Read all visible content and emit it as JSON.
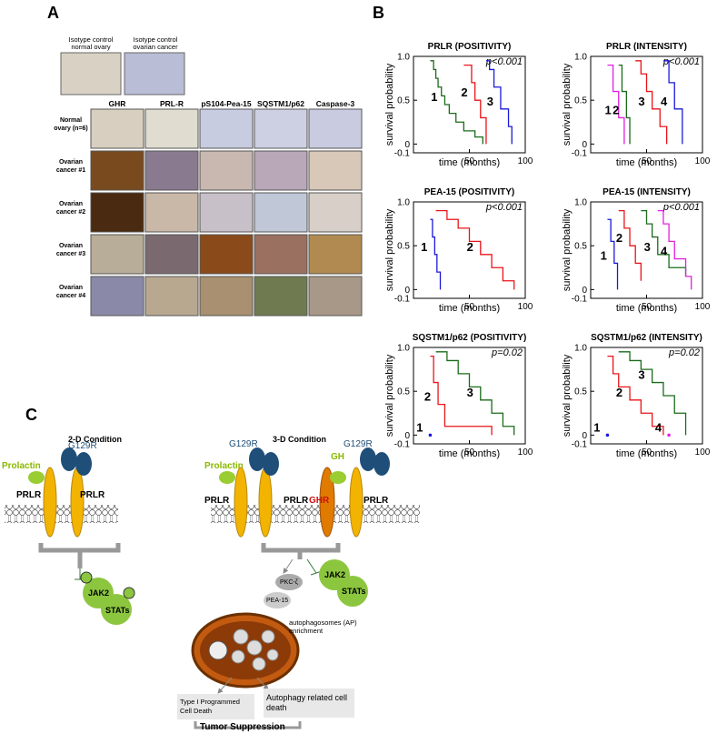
{
  "panel_a": {
    "label": "A",
    "isotype": [
      "Isotype control normal ovary",
      "Isotype  control ovarian cancer"
    ],
    "columns": [
      "GHR",
      "PRL-R",
      "pS104-Pea-15",
      "SQSTM1/p62",
      "Caspase-3"
    ],
    "rows": [
      "Normal ovary (n=6)",
      "Ovarian cancer #1",
      "Ovarian cancer #2",
      "Ovarian cancer #3",
      "Ovarian cancer #4"
    ]
  },
  "panel_b": {
    "label": "B"
  },
  "chart_data": [
    {
      "type": "line",
      "title": "PRLR (POSITIVITY)",
      "annotation": "p<0.001",
      "x_label": "time (months)",
      "y_label": "survival probability",
      "xlim": [
        0,
        100
      ],
      "ylim": [
        -0.1,
        1
      ],
      "xticks": [
        50,
        100
      ],
      "yticks": [
        -0.1,
        0,
        0.5,
        {
          "value": 1,
          "label": "1.0"
        }
      ],
      "series": [
        {
          "name": "1",
          "color": "#1a6b1a",
          "x": [
            15,
            18,
            20,
            22,
            25,
            28,
            32,
            38,
            45,
            55,
            62
          ],
          "values": [
            0.95,
            0.85,
            0.75,
            0.65,
            0.55,
            0.45,
            0.35,
            0.25,
            0.15,
            0.08,
            0
          ]
        },
        {
          "name": "2",
          "color": "#e8141a",
          "x": [
            45,
            52,
            55,
            60,
            65
          ],
          "values": [
            0.9,
            0.7,
            0.5,
            0.3,
            0
          ]
        },
        {
          "name": "3",
          "color": "#1a1adb",
          "x": [
            65,
            68,
            72,
            78,
            85,
            88
          ],
          "values": [
            0.95,
            0.85,
            0.65,
            0.4,
            0.2,
            0
          ]
        }
      ]
    },
    {
      "type": "line",
      "title": "PRLR (INTENSITY)",
      "annotation": "p<0.001",
      "x_label": "time (months)",
      "y_label": "survival probability",
      "xlim": [
        0,
        100
      ],
      "ylim": [
        -0.1,
        1
      ],
      "xticks": [
        50,
        100
      ],
      "yticks": [
        -0.1,
        0,
        0.5,
        {
          "value": 1,
          "label": "1.0"
        }
      ],
      "series": [
        {
          "name": "1",
          "color": "#e020e0",
          "x": [
            15,
            20,
            25,
            30
          ],
          "values": [
            0.9,
            0.6,
            0.3,
            0
          ]
        },
        {
          "name": "2",
          "color": "#1a6b1a",
          "x": [
            25,
            28,
            32,
            35
          ],
          "values": [
            0.9,
            0.6,
            0.3,
            0
          ]
        },
        {
          "name": "3",
          "color": "#e8141a",
          "x": [
            40,
            45,
            50,
            55,
            62,
            68
          ],
          "values": [
            0.95,
            0.8,
            0.6,
            0.4,
            0.2,
            0
          ]
        },
        {
          "name": "4",
          "color": "#1a1adb",
          "x": [
            65,
            70,
            75,
            82
          ],
          "values": [
            0.95,
            0.7,
            0.4,
            0
          ]
        }
      ]
    },
    {
      "type": "line",
      "title": "PEA-15 (POSITIVITY)",
      "annotation": "p<0.001",
      "x_label": "time (months)",
      "y_label": "survival probability",
      "xlim": [
        0,
        100
      ],
      "ylim": [
        -0.1,
        1
      ],
      "xticks": [
        50,
        100
      ],
      "yticks": [
        -0.1,
        0,
        0.5,
        {
          "value": 1,
          "label": "1.0"
        }
      ],
      "series": [
        {
          "name": "1",
          "color": "#1a1adb",
          "x": [
            15,
            17,
            19,
            21,
            24
          ],
          "values": [
            0.8,
            0.6,
            0.4,
            0.2,
            0
          ]
        },
        {
          "name": "2",
          "color": "#e8141a",
          "x": [
            20,
            30,
            40,
            50,
            60,
            70,
            80,
            90
          ],
          "values": [
            0.9,
            0.8,
            0.7,
            0.55,
            0.4,
            0.25,
            0.1,
            0
          ]
        }
      ]
    },
    {
      "type": "line",
      "title": "PEA-15 (INTENSITY)",
      "annotation": "p<0.001",
      "x_label": "time (months)",
      "y_label": "survival probability",
      "xlim": [
        0,
        100
      ],
      "ylim": [
        -0.1,
        1
      ],
      "xticks": [
        50,
        100
      ],
      "yticks": [
        -0.1,
        0,
        0.5,
        {
          "value": 1,
          "label": "1.0"
        }
      ],
      "series": [
        {
          "name": "1",
          "color": "#1a1adb",
          "x": [
            15,
            18,
            21,
            24
          ],
          "values": [
            0.8,
            0.55,
            0.3,
            0
          ]
        },
        {
          "name": "2",
          "color": "#e8141a",
          "x": [
            25,
            30,
            35,
            40,
            45
          ],
          "values": [
            0.9,
            0.7,
            0.5,
            0.3,
            0.1
          ]
        },
        {
          "name": "3",
          "color": "#1a6b1a",
          "x": [
            45,
            50,
            55,
            60,
            70,
            85
          ],
          "values": [
            0.9,
            0.75,
            0.6,
            0.4,
            0.25,
            0.15
          ]
        },
        {
          "name": "4",
          "color": "#e020e0",
          "x": [
            60,
            65,
            70,
            75,
            85,
            90
          ],
          "values": [
            0.9,
            0.75,
            0.55,
            0.35,
            0.15,
            0
          ]
        }
      ]
    },
    {
      "type": "line",
      "title": "SQSTM1/p62 (POSITIVITY)",
      "annotation": "p=0.02",
      "x_label": "time (months)",
      "y_label": "survival probability",
      "xlim": [
        0,
        100
      ],
      "ylim": [
        -0.1,
        1
      ],
      "xticks": [
        50,
        100
      ],
      "yticks": [
        -0.1,
        0,
        0.5,
        {
          "value": 1,
          "label": "1.0"
        }
      ],
      "series": [
        {
          "name": "1",
          "color": "#1a1adb",
          "x": [
            15
          ],
          "values": [
            0
          ]
        },
        {
          "name": "2",
          "color": "#e8141a",
          "x": [
            15,
            18,
            22,
            28,
            70
          ],
          "values": [
            0.9,
            0.6,
            0.35,
            0.1,
            0
          ]
        },
        {
          "name": "3",
          "color": "#1a6b1a",
          "x": [
            20,
            30,
            40,
            50,
            60,
            70,
            80,
            90
          ],
          "values": [
            0.95,
            0.85,
            0.7,
            0.55,
            0.4,
            0.25,
            0.1,
            0
          ]
        }
      ]
    },
    {
      "type": "line",
      "title": "SQSTM1/p62 (INTENSITY)",
      "annotation": "p=0.02",
      "x_label": "time (months)",
      "y_label": "survival probability",
      "xlim": [
        0,
        100
      ],
      "ylim": [
        -0.1,
        1
      ],
      "xticks": [
        50,
        100
      ],
      "yticks": [
        -0.1,
        0,
        0.5,
        {
          "value": 1,
          "label": "1.0"
        }
      ],
      "series": [
        {
          "name": "1",
          "color": "#1a1adb",
          "x": [
            15
          ],
          "values": [
            0
          ]
        },
        {
          "name": "2",
          "color": "#e8141a",
          "x": [
            15,
            20,
            25,
            35,
            45,
            55,
            65
          ],
          "values": [
            0.9,
            0.7,
            0.55,
            0.4,
            0.25,
            0.1,
            0
          ]
        },
        {
          "name": "3",
          "color": "#1a6b1a",
          "x": [
            25,
            35,
            45,
            55,
            65,
            75,
            85
          ],
          "values": [
            0.95,
            0.85,
            0.75,
            0.6,
            0.45,
            0.25,
            0
          ]
        },
        {
          "name": "4",
          "color": "#e020e0",
          "x": [
            70
          ],
          "values": [
            0
          ]
        }
      ]
    }
  ],
  "panel_c": {
    "label": "C",
    "left_title": "2-D Condition",
    "right_title": "3-D Condition",
    "left": {
      "ligand": "Prolactin",
      "antagonist": "G129R",
      "receptor_1": "PRLR",
      "receptor_2": "PRLR",
      "kinase": "JAK2",
      "stats": "STATs"
    },
    "right": {
      "ligand": "Prolactin",
      "antagonist_1": "G129R",
      "antagonist_2": "G129R",
      "gh": "GH",
      "receptor_1": "PRLR",
      "receptor_2": "PRLR",
      "ghr": "GHR",
      "receptor_3": "PRLR",
      "pkc": "PKC-ζ",
      "pea": "PEA-15",
      "kinase": "JAK2",
      "stats": "STATs",
      "autophagosomes": "autophagosomes (AP) enrichment",
      "outcome_1": "Type I Programmed Cell Death",
      "outcome_2": "Autophagy related cell death",
      "result": "Tumor Suppression"
    }
  }
}
